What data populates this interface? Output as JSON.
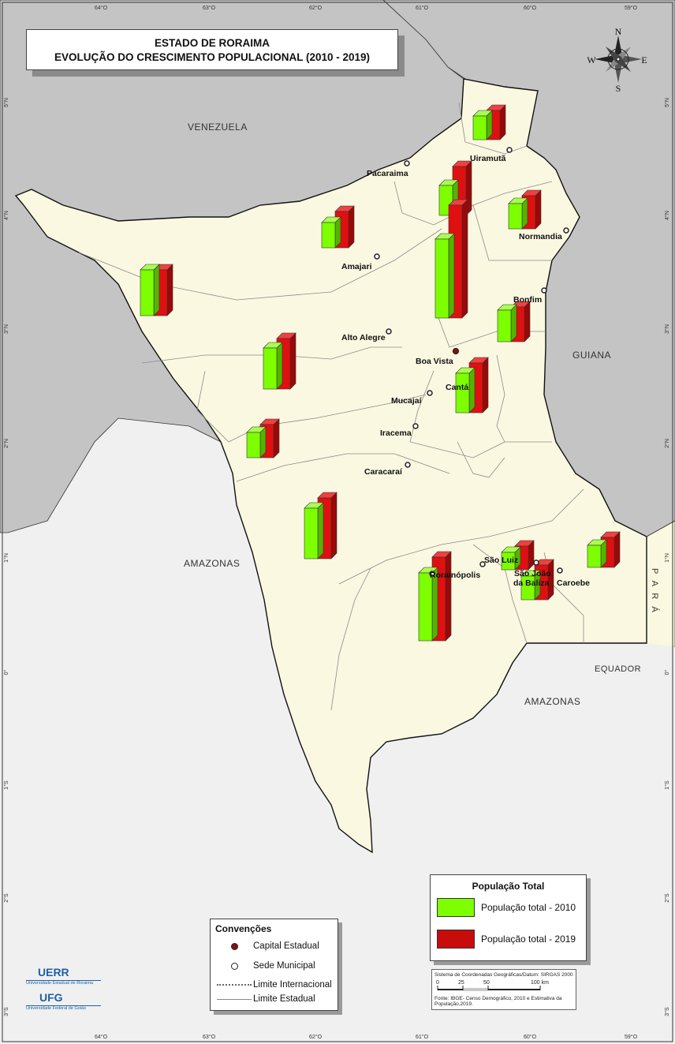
{
  "title": {
    "line1": "ESTADO DE RORAIMA",
    "line2": "EVOLUÇÃO DO  CRESCIMENTO POPULACIONAL (2010 - 2019)"
  },
  "north_arrow": {
    "n": "N",
    "s": "S",
    "e": "E",
    "w": "W"
  },
  "frame_labels": {
    "longitudes": [
      "64°O",
      "63°O",
      "62°O",
      "61°O",
      "60°O",
      "59°O"
    ],
    "latitudes": [
      "5°N",
      "4°N",
      "3°N",
      "2°N",
      "1°N",
      "0°",
      "1°S",
      "2°S",
      "3°S"
    ]
  },
  "neighbors": {
    "venezuela": "VENEZUELA",
    "guiana": "GUIANA",
    "amazonas_w": "AMAZONAS",
    "amazonas_s": "AMAZONAS",
    "para": "P A R Á",
    "equador": "EQUADOR"
  },
  "cities": {
    "uiramuta": "Uiramutã",
    "pacaraima": "Pacaraima",
    "normandia": "Normandia",
    "amajari": "Amajari",
    "bonfim": "Bonfim",
    "alto_alegre": "Alto Alegre",
    "boa_vista": "Boa Vista",
    "canta": "Cantá",
    "mucajai": "Mucajaí",
    "iracema": "Iracema",
    "caracarai": "Caracaraí",
    "sao_luiz": "São Luiz",
    "rorainopolis": "Rorainópolis",
    "sao_joao_1": "São João",
    "sao_joao_2": "da Baliza",
    "caroebe": "Caroebe"
  },
  "colors": {
    "pop2010": "#7dff00",
    "pop2019": "#e01010",
    "state_fill": "#fbf8e1",
    "neighbor_fill": "#c4c4c4",
    "amazonas_fill": "#f0f0f0"
  },
  "population_legend": {
    "title": "População Total",
    "item_2010": "População total - 2010",
    "item_2019": "População total - 2019"
  },
  "conventions": {
    "title": "Convenções",
    "capital": "Capital Estadual",
    "sede": "Sede Municipal",
    "limite_int": "Limite Internacional",
    "limite_est": "Limite Estadual"
  },
  "scale": {
    "crs": "Sistema de Coordenadas Geográficas/Datum: SIRGAS 2000",
    "ticks": [
      "0",
      "25",
      "50",
      "100 km"
    ],
    "source": "Fonte: IBGE- Censo Demográfico, 2010 e Estimativa da População,2019."
  },
  "institutions": {
    "uerr": "UERR",
    "uerr_full": "Universidade Estadual de Roraima",
    "ufg": "UFG",
    "ufg_full": "Universidade Federal de Goiás"
  }
}
